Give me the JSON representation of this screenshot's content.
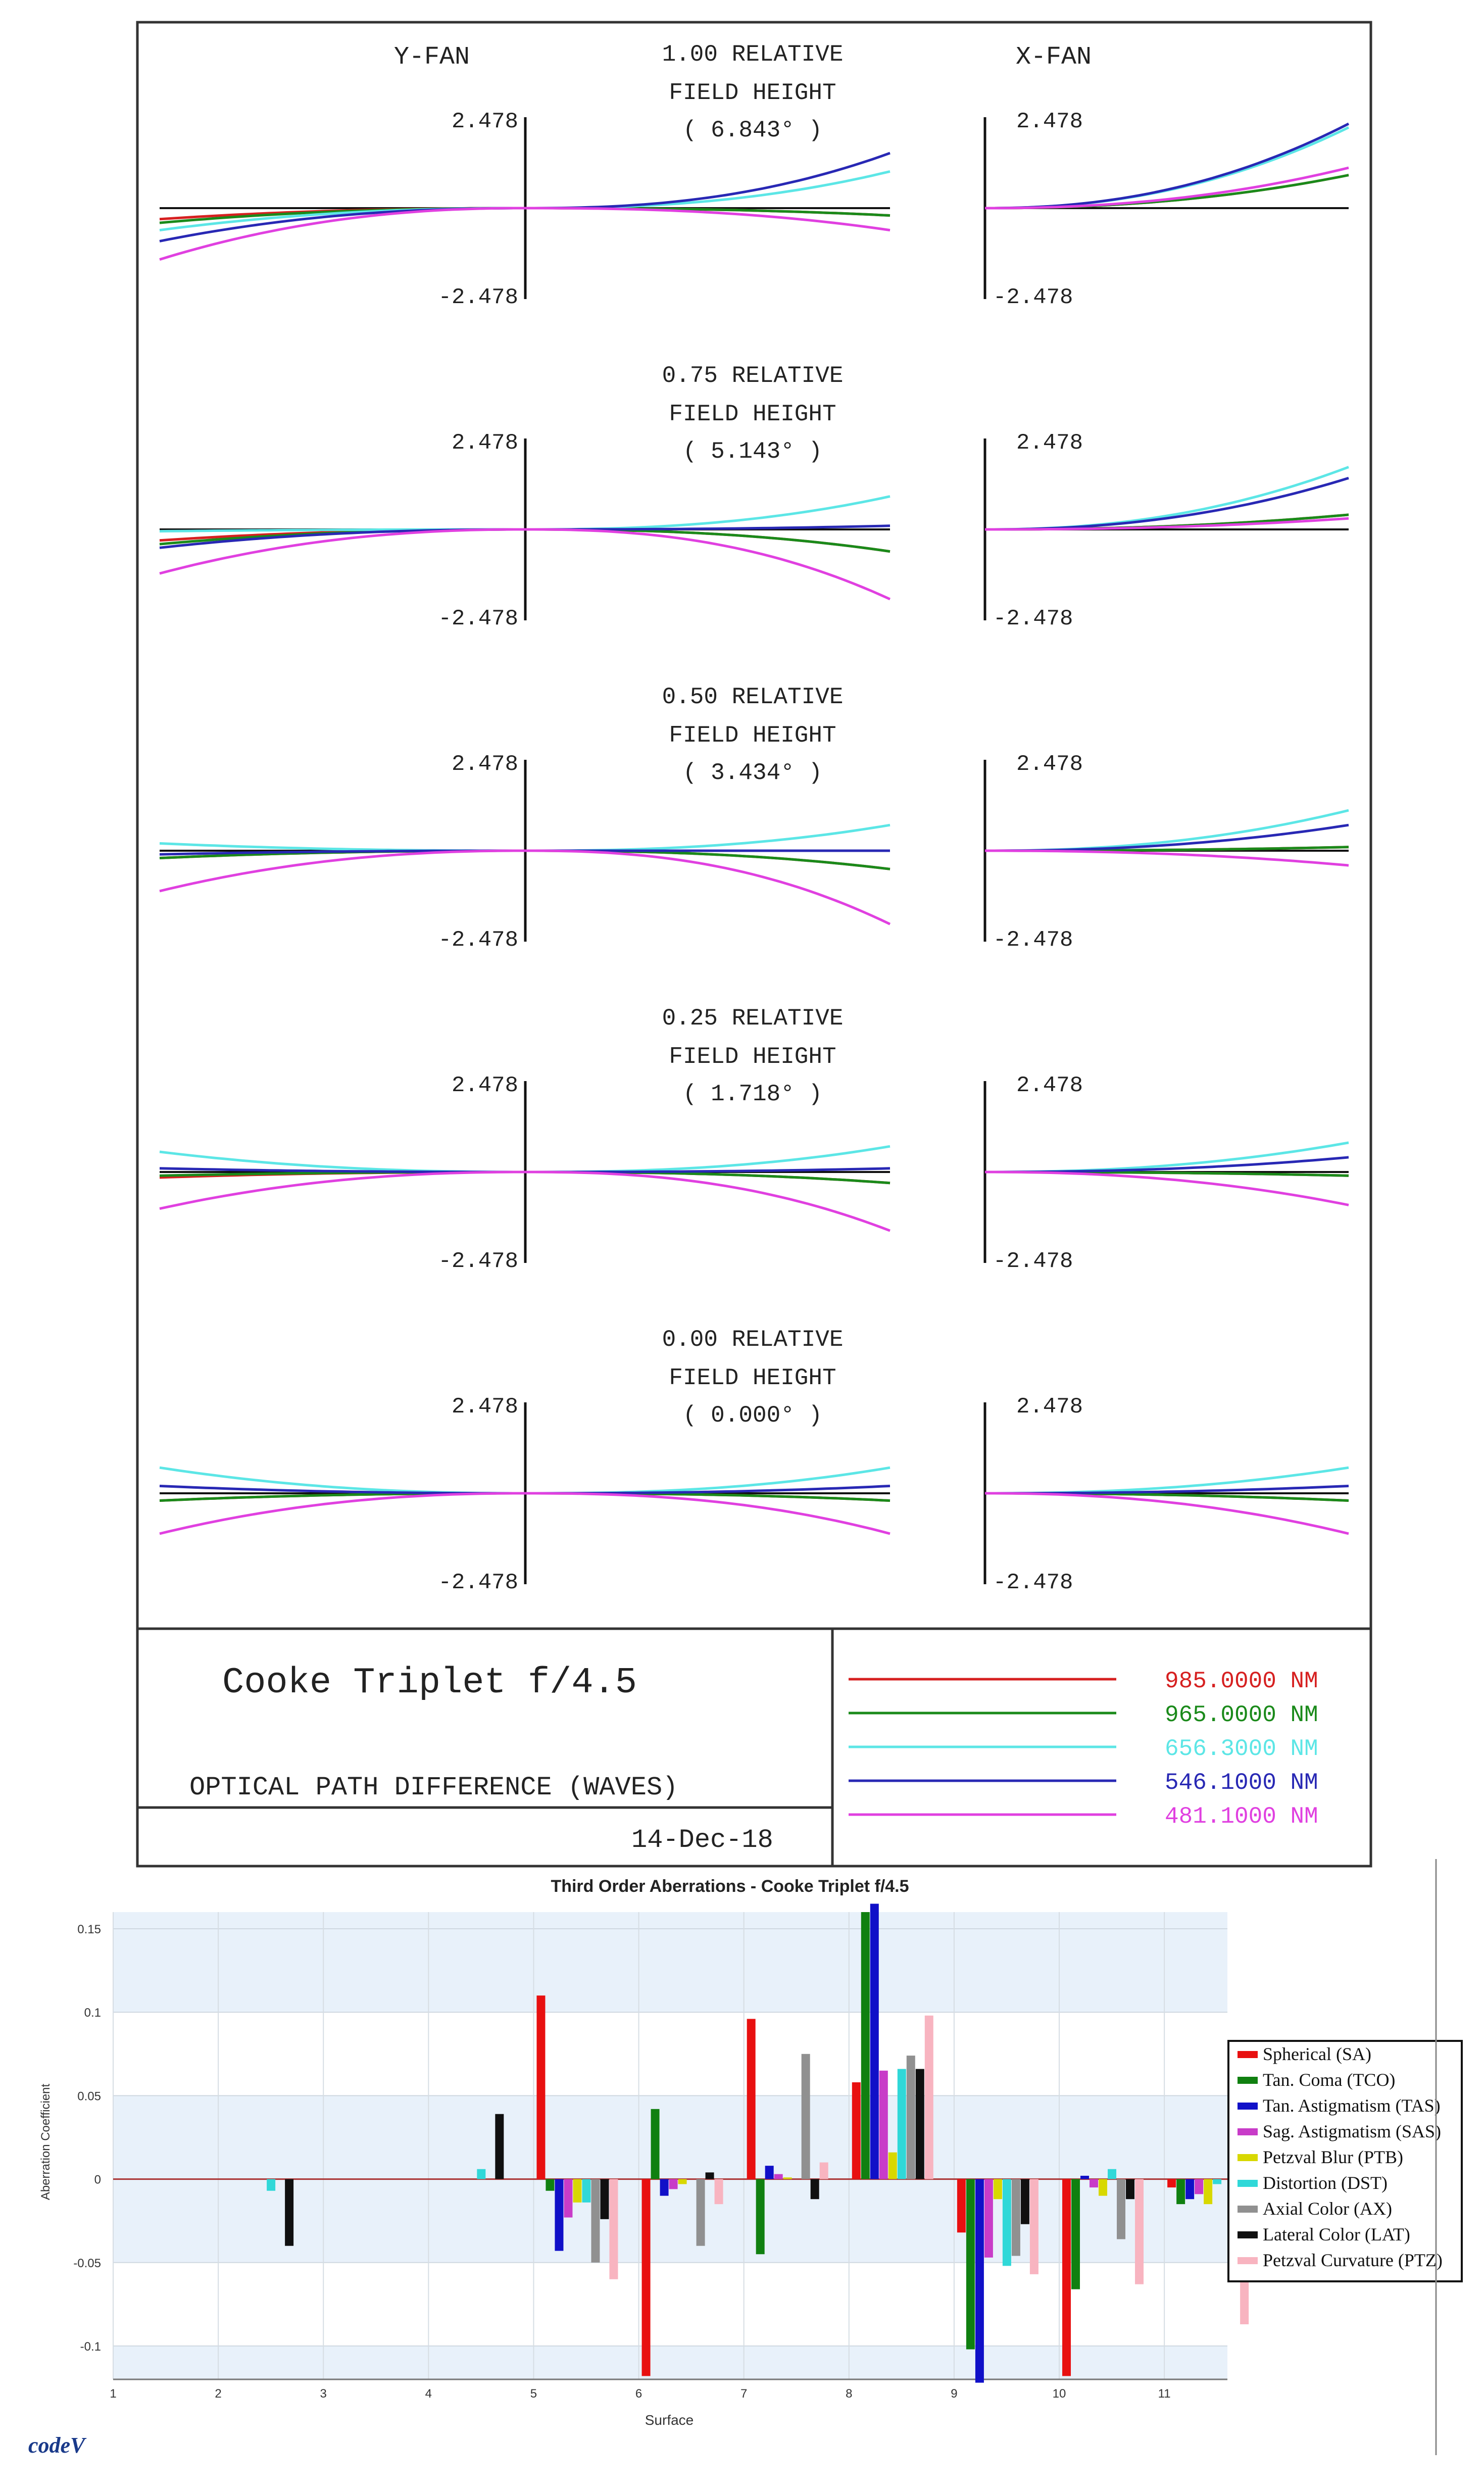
{
  "chart_data": [
    {
      "type": "line",
      "title": "Cooke Triplet f/4.5",
      "subtitle": "OPTICAL PATH DIFFERENCE (WAVES)",
      "date": "14-Dec-18",
      "column_titles": {
        "y_fan": "Y-FAN",
        "x_fan": "X-FAN"
      },
      "axis_max_label": "2.478",
      "axis_min_label": "-2.478",
      "ylim": [
        -2.478,
        2.478
      ],
      "wavelengths": [
        {
          "label": "985.0000 NM",
          "color": "#d62020"
        },
        {
          "label": "965.0000 NM",
          "color": "#1a8a1a"
        },
        {
          "label": "656.3000 NM",
          "color": "#5ce6e6"
        },
        {
          "label": "546.1000 NM",
          "color": "#2828b4"
        },
        {
          "label": "481.1000 NM",
          "color": "#e040e0"
        }
      ],
      "fields": [
        {
          "rel_label": "1.00 RELATIVE",
          "fh_label": "FIELD HEIGHT",
          "angle_label": "( 6.843° )",
          "y_left": [
            -0.3,
            -0.4,
            -0.6,
            -0.9,
            -1.4
          ],
          "y_right": [
            -0.2,
            -0.2,
            1.0,
            1.5,
            -0.6
          ],
          "x_right": [
            0.9,
            0.9,
            2.2,
            2.3,
            1.1
          ]
        },
        {
          "rel_label": "0.75 RELATIVE",
          "fh_label": "FIELD HEIGHT",
          "angle_label": "( 5.143° )",
          "y_left": [
            -0.3,
            -0.4,
            -0.05,
            -0.5,
            -1.2
          ],
          "y_right": [
            -0.6,
            -0.6,
            0.9,
            0.1,
            -1.9
          ],
          "x_right": [
            0.4,
            0.4,
            1.7,
            1.4,
            0.3
          ]
        },
        {
          "rel_label": "0.50 RELATIVE",
          "fh_label": "FIELD HEIGHT",
          "angle_label": "( 3.434° )",
          "y_left": [
            -0.2,
            -0.2,
            0.2,
            -0.1,
            -1.1
          ],
          "y_right": [
            -0.5,
            -0.5,
            0.7,
            0.0,
            -2.0
          ],
          "x_right": [
            0.1,
            0.1,
            1.1,
            0.7,
            -0.4
          ]
        },
        {
          "rel_label": "0.25 RELATIVE",
          "fh_label": "FIELD HEIGHT",
          "angle_label": "( 1.718° )",
          "y_left": [
            -0.15,
            -0.1,
            0.55,
            0.1,
            -1.0
          ],
          "y_right": [
            -0.3,
            -0.3,
            0.7,
            0.1,
            -1.6
          ],
          "x_right": [
            -0.1,
            -0.1,
            0.8,
            0.4,
            -0.9
          ]
        },
        {
          "rel_label": "0.00 RELATIVE",
          "fh_label": "FIELD HEIGHT",
          "angle_label": "( 0.000° )",
          "y_left": [
            -0.2,
            -0.2,
            0.7,
            0.2,
            -1.1
          ],
          "y_right": [
            -0.2,
            -0.2,
            0.7,
            0.2,
            -1.1
          ],
          "x_right": [
            -0.2,
            -0.2,
            0.7,
            0.2,
            -1.1
          ]
        }
      ]
    },
    {
      "type": "bar",
      "title": "Third Order Aberrations - Cooke Triplet f/4.5",
      "xlabel": "Surface",
      "ylabel": "Aberration Coefficient",
      "ylim": [
        -0.12,
        0.16
      ],
      "xlim": [
        1,
        11.6
      ],
      "yticks": [
        -0.1,
        -0.05,
        0,
        0.05,
        0.1,
        0.15
      ],
      "ytick_labels": [
        "-0.1",
        "-0.05",
        "0",
        "0.05",
        "0.1",
        "0.15"
      ],
      "xticks": [
        1,
        2,
        3,
        4,
        5,
        6,
        7,
        8,
        9,
        10,
        11
      ],
      "xtick_labels": [
        "1",
        "2",
        "3",
        "4",
        "5",
        "6",
        "7",
        "8",
        "9",
        "10",
        "11"
      ],
      "categories": [
        1,
        2,
        3,
        4,
        5,
        6,
        7,
        8,
        9,
        10,
        11
      ],
      "series": [
        {
          "name": "Spherical (SA)",
          "color": "#e81010",
          "values": [
            0,
            0,
            0,
            0,
            0.11,
            -0.118,
            0.096,
            0.058,
            -0.032,
            -0.118,
            -0.005
          ]
        },
        {
          "name": "Tan. Coma (TCO)",
          "color": "#108010",
          "values": [
            0,
            0,
            0,
            0,
            -0.007,
            0.042,
            -0.045,
            0.16,
            -0.102,
            -0.066,
            -0.015
          ]
        },
        {
          "name": "Tan. Astigmatism (TAS)",
          "color": "#1010c8",
          "values": [
            0,
            0,
            0,
            0,
            -0.043,
            -0.01,
            0.008,
            0.165,
            -0.122,
            0.002,
            -0.012
          ]
        },
        {
          "name": "Sag. Astigmatism (SAS)",
          "color": "#c83cc8",
          "values": [
            0,
            0,
            0,
            0,
            -0.023,
            -0.006,
            0.003,
            0.065,
            -0.047,
            -0.005,
            -0.009
          ]
        },
        {
          "name": "Petzval Blur (PTB)",
          "color": "#d8d800",
          "values": [
            0,
            0,
            0,
            0,
            -0.014,
            -0.003,
            0.001,
            0.016,
            -0.012,
            -0.01,
            -0.015
          ]
        },
        {
          "name": "Distortion (DST)",
          "color": "#30d8d8",
          "values": [
            0,
            -0.007,
            0,
            0.006,
            -0.014,
            0,
            0,
            0.066,
            -0.052,
            0.006,
            -0.003
          ]
        },
        {
          "name": "Axial Color (AX)",
          "color": "#909090",
          "values": [
            0,
            0,
            0,
            0,
            -0.05,
            -0.04,
            0.075,
            0.074,
            -0.046,
            -0.036,
            0
          ]
        },
        {
          "name": "Lateral Color (LAT)",
          "color": "#101010",
          "values": [
            0,
            -0.04,
            0,
            0.039,
            -0.024,
            0.004,
            -0.012,
            0.066,
            -0.027,
            -0.012,
            0
          ]
        },
        {
          "name": "Petzval Curvature (PTZ)",
          "color": "#f8b4c0",
          "values": [
            0,
            0,
            0,
            0,
            -0.06,
            -0.015,
            0.01,
            0.098,
            -0.057,
            -0.063,
            -0.087
          ]
        }
      ],
      "legend": "right"
    }
  ],
  "footer": {
    "logo_text": "codeV"
  }
}
